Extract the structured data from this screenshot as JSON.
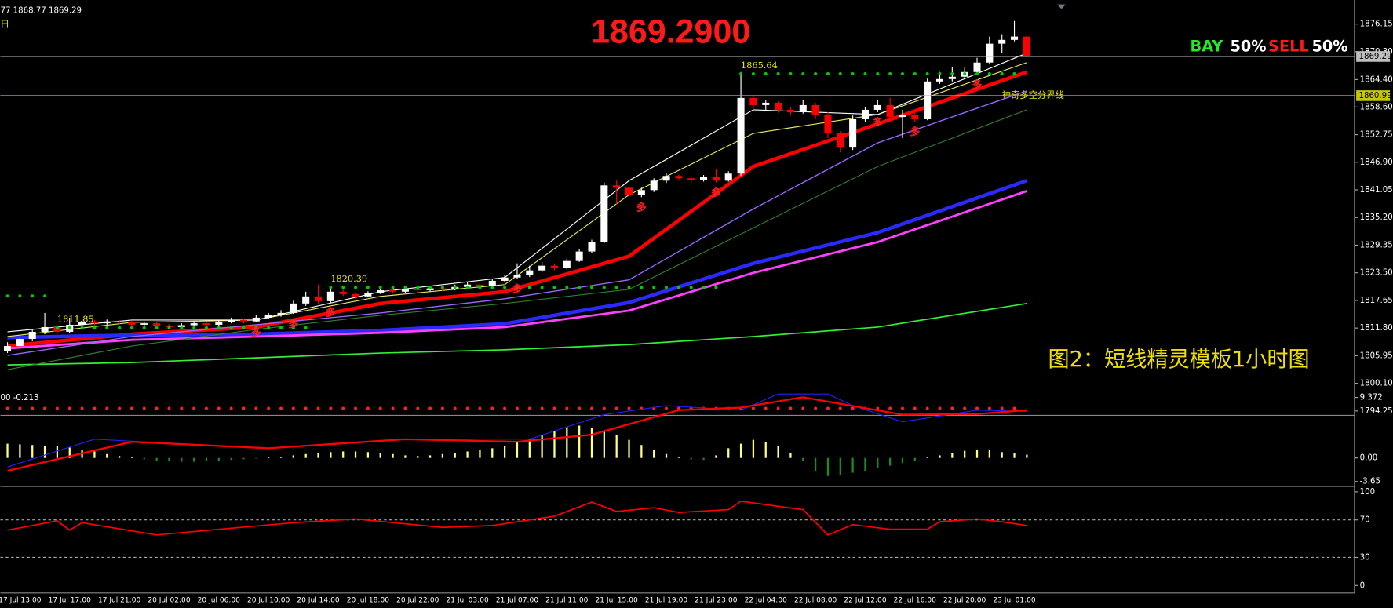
{
  "chart_data": [
    {
      "type": "candlestick",
      "title": "1869.2900",
      "header": "77 1868.77 1869.29",
      "period": "日",
      "ratio": {
        "buy_label": "BAY",
        "buy": "50%",
        "sell_label": "SELL",
        "sell": "50%"
      },
      "annotation": "神奇多空分界线",
      "caption": "图2：短线精灵模板1小时图",
      "up_color": "#ffffff",
      "down_color": "#ff0000",
      "ylim": [
        1793.5,
        1880.3
      ],
      "yticks": [
        1876.15,
        {
          "value": 1870.3,
          "label": "1870.30"
        },
        {
          "value": 1864.4,
          "label": "1864.40"
        },
        {
          "value": 1858.6,
          "label": "1858.60"
        },
        1852.75,
        {
          "value": 1846.9,
          "label": "1846.90"
        },
        1841.05,
        {
          "value": 1835.2,
          "label": "1835.20"
        },
        1829.35,
        {
          "value": 1823.5,
          "label": "1823.50"
        },
        1817.65,
        {
          "value": 1811.8,
          "label": "1811.80"
        },
        1805.95,
        {
          "value": 1800.1,
          "label": "1800.10"
        },
        1794.25
      ],
      "categories": [
        null,
        "17 Jul 13:00",
        null,
        null,
        null,
        "17 Jul 17:00",
        null,
        null,
        null,
        "17 Jul 21:00",
        null,
        null,
        null,
        "20 Jul 02:00",
        null,
        null,
        null,
        "20 Jul 06:00",
        null,
        null,
        null,
        "20 Jul 10:00",
        null,
        null,
        null,
        "20 Jul 14:00",
        null,
        null,
        null,
        "20 Jul 18:00",
        null,
        null,
        null,
        "20 Jul 22:00",
        null,
        null,
        null,
        "21 Jul 03:00",
        null,
        null,
        null,
        "21 Jul 07:00",
        null,
        null,
        null,
        "21 Jul 11:00",
        null,
        null,
        null,
        "21 Jul 15:00",
        null,
        null,
        null,
        "21 Jul 19:00",
        null,
        null,
        null,
        "21 Jul 23:00",
        null,
        null,
        null,
        "22 Jul 04:00",
        null,
        null,
        null,
        "22 Jul 08:00",
        null,
        null,
        null,
        "22 Jul 12:00",
        null,
        null,
        null,
        "22 Jul 16:00",
        null,
        null,
        null,
        "22 Jul 20:00",
        null,
        null,
        null,
        "23 Jul 01:00",
        null
      ],
      "ohlc": [
        [
          1807,
          1808.8,
          1806.5,
          1808
        ],
        [
          1808,
          1810,
          1807.5,
          1809.5
        ],
        [
          1809.5,
          1811.5,
          1809,
          1811
        ],
        [
          1811,
          1815,
          1810.5,
          1812
        ],
        [
          1812,
          1812.5,
          1810.5,
          1811
        ],
        [
          1811,
          1814,
          1810.8,
          1812.5
        ],
        [
          1812.5,
          1813.8,
          1812,
          1813
        ],
        [
          1813,
          1813.5,
          1812.3,
          1812.8
        ],
        [
          1812.8,
          1813.6,
          1812.5,
          1813.2
        ],
        [
          1813.2,
          1813.5,
          1812.6,
          1813
        ],
        [
          1813,
          1813.3,
          1812.2,
          1812.5
        ],
        [
          1812.5,
          1813.2,
          1812.2,
          1812.8
        ],
        [
          1812.8,
          1813,
          1812,
          1812.3
        ],
        [
          1812.3,
          1812.6,
          1811.6,
          1812
        ],
        [
          1812,
          1812.8,
          1811.8,
          1812.4
        ],
        [
          1812.4,
          1813.2,
          1812.1,
          1812.8
        ],
        [
          1812.8,
          1813,
          1812.1,
          1812.5
        ],
        [
          1812.5,
          1813.4,
          1812.3,
          1813
        ],
        [
          1813,
          1814,
          1812.8,
          1813.5
        ],
        [
          1813.5,
          1813.8,
          1812.8,
          1813.2
        ],
        [
          1813.2,
          1814.5,
          1813,
          1814
        ],
        [
          1814,
          1815,
          1813.7,
          1814.5
        ],
        [
          1814.5,
          1815.6,
          1814.2,
          1815
        ],
        [
          1815,
          1817.6,
          1814.8,
          1817
        ],
        [
          1817,
          1819.5,
          1816.5,
          1818.5
        ],
        [
          1818.5,
          1821,
          1817,
          1817.5
        ],
        [
          1817.5,
          1820.5,
          1817.2,
          1819.5
        ],
        [
          1819.5,
          1820,
          1818.6,
          1819
        ],
        [
          1819,
          1819.4,
          1818,
          1818.5
        ],
        [
          1818.5,
          1819.6,
          1818.3,
          1819.2
        ],
        [
          1819.2,
          1820.2,
          1819,
          1819.8
        ],
        [
          1819.8,
          1820.1,
          1819.1,
          1819.5
        ],
        [
          1819.5,
          1820.5,
          1819.3,
          1820
        ],
        [
          1820,
          1820.4,
          1819.4,
          1819.8
        ],
        [
          1819.8,
          1820.6,
          1819.5,
          1820.2
        ],
        [
          1820.2,
          1820.5,
          1819.6,
          1820
        ],
        [
          1820,
          1821,
          1819.8,
          1820.5
        ],
        [
          1820.5,
          1821.6,
          1820.2,
          1821
        ],
        [
          1821,
          1821.3,
          1820.2,
          1820.7
        ],
        [
          1820.7,
          1822.2,
          1820.5,
          1821.8
        ],
        [
          1821.8,
          1823,
          1821.5,
          1822.5
        ],
        [
          1822.5,
          1825.5,
          1822.2,
          1823
        ],
        [
          1823,
          1825,
          1822.6,
          1824
        ],
        [
          1824,
          1825.8,
          1823.6,
          1825
        ],
        [
          1825,
          1825.5,
          1824,
          1824.6
        ],
        [
          1824.6,
          1826.5,
          1824.2,
          1826
        ],
        [
          1826,
          1828.5,
          1825.8,
          1828
        ],
        [
          1828,
          1830.5,
          1827.6,
          1830
        ],
        [
          1830,
          1842.6,
          1829.8,
          1842
        ],
        [
          1842,
          1843,
          1838,
          1841.5
        ],
        [
          1841.5,
          1842,
          1839.5,
          1840
        ],
        [
          1840,
          1841.5,
          1839.5,
          1841
        ],
        [
          1841,
          1843.5,
          1840.6,
          1843
        ],
        [
          1843,
          1844.5,
          1842.5,
          1844
        ],
        [
          1844,
          1844.3,
          1843,
          1843.5
        ],
        [
          1843.5,
          1844,
          1842.5,
          1843.2
        ],
        [
          1843.2,
          1844.2,
          1842.8,
          1843.8
        ],
        [
          1843.8,
          1845.5,
          1842.6,
          1843
        ],
        [
          1843,
          1845,
          1842.8,
          1844.5
        ],
        [
          1844.5,
          1866,
          1844,
          1860.5
        ],
        [
          1860.5,
          1861,
          1858,
          1859
        ],
        [
          1859,
          1860,
          1857.8,
          1859.5
        ],
        [
          1859.5,
          1859.8,
          1857.4,
          1858
        ],
        [
          1858,
          1858.5,
          1856.8,
          1857.5
        ],
        [
          1857.5,
          1860,
          1857.2,
          1859
        ],
        [
          1859,
          1859.5,
          1856,
          1857
        ],
        [
          1857,
          1857.5,
          1852,
          1853
        ],
        [
          1853,
          1853.5,
          1849,
          1850
        ],
        [
          1850,
          1856.8,
          1849.5,
          1856
        ],
        [
          1856,
          1858.5,
          1855.5,
          1858
        ],
        [
          1858,
          1860,
          1857.5,
          1859
        ],
        [
          1859,
          1860.5,
          1856,
          1856.5
        ],
        [
          1856.5,
          1858,
          1852,
          1857
        ],
        [
          1857,
          1857.5,
          1855.5,
          1856
        ],
        [
          1856,
          1864.6,
          1855.8,
          1864
        ],
        [
          1864,
          1866,
          1863.5,
          1864.5
        ],
        [
          1864.5,
          1867,
          1864,
          1865
        ],
        [
          1865,
          1867,
          1864.6,
          1866
        ],
        [
          1866,
          1869,
          1865.5,
          1868
        ],
        [
          1868,
          1873.5,
          1867.6,
          1872
        ],
        [
          1872,
          1874,
          1870,
          1872.8
        ],
        [
          1872.8,
          1876.8,
          1872.5,
          1873.5
        ],
        [
          1873.5,
          1874,
          1869,
          1869.29
        ]
      ],
      "lines": [
        {
          "color": "#ff0000",
          "width": 4,
          "x": [
            0,
            10,
            20,
            30,
            40,
            50,
            60,
            70,
            82
          ],
          "values": [
            1808,
            1810.5,
            1812,
            1817,
            1819.5,
            1827,
            1846,
            1855,
            1866
          ]
        },
        {
          "color": "#2a2aff",
          "width": 4,
          "x": [
            0,
            10,
            20,
            30,
            40,
            50,
            60,
            70,
            82
          ],
          "values": [
            1809.8,
            1810.3,
            1810.5,
            1811.3,
            1812.7,
            1817.2,
            1825.5,
            1832,
            1843
          ]
        },
        {
          "color": "#ff40ff",
          "width": 2.5,
          "x": [
            0,
            10,
            20,
            30,
            40,
            50,
            60,
            70,
            82
          ],
          "values": [
            1807.5,
            1809.3,
            1810,
            1810.8,
            1812,
            1815.5,
            1823.5,
            1830,
            1840.8
          ]
        },
        {
          "color": "#33ee33",
          "width": 1.5,
          "x": [
            0,
            10,
            20,
            30,
            40,
            50,
            60,
            70,
            82
          ],
          "values": [
            1804,
            1804.5,
            1805.5,
            1806.5,
            1807.2,
            1808.3,
            1810,
            1812,
            1817
          ]
        },
        {
          "color": "#9966ff",
          "width": 1.2,
          "x": [
            0,
            10,
            20,
            30,
            40,
            50,
            60,
            70,
            82
          ],
          "values": [
            1806,
            1810,
            1812.5,
            1815,
            1818,
            1822,
            1837,
            1851,
            1862
          ]
        },
        {
          "color": "#2f7f2f",
          "width": 1,
          "x": [
            0,
            10,
            20,
            30,
            40,
            50,
            60,
            70,
            82
          ],
          "values": [
            1803,
            1808,
            1811.5,
            1814.5,
            1817,
            1820,
            1833,
            1846,
            1858
          ]
        },
        {
          "color": "#e8e860",
          "width": 1,
          "x": [
            0,
            10,
            20,
            30,
            40,
            50,
            60,
            70,
            82
          ],
          "values": [
            1810,
            1813,
            1813.5,
            1818.5,
            1821,
            1840,
            1853,
            1857,
            1868
          ]
        },
        {
          "color": "#ffffff",
          "width": 1,
          "x": [
            0,
            10,
            20,
            30,
            40,
            50,
            60,
            70,
            82
          ],
          "values": [
            1811,
            1813.5,
            1813.5,
            1819.5,
            1822.5,
            1843,
            1858,
            1857,
            1870
          ]
        }
      ],
      "labeled_levels": [
        {
          "value": 1811.85,
          "from": 4,
          "to": 25
        },
        {
          "value": 1820.39,
          "from": 26,
          "to": 58
        },
        {
          "value": 1865.64,
          "from": 59,
          "to": 82
        }
      ],
      "unlabeled_levels": [
        {
          "value": 1818.6,
          "from": 0,
          "to": 4,
          "color": "#00cc00"
        },
        {
          "value": 1794.8,
          "from": 0,
          "to": 82,
          "color": "#ff2020"
        }
      ],
      "level_color": "#00cc00",
      "price_lines": [
        {
          "value": 1869.29,
          "color": "#c0c0c0"
        },
        {
          "value": 1860.99,
          "color": "#c8c800"
        }
      ],
      "signals": {
        "text": "多",
        "at": [
          20,
          23,
          26,
          41,
          51,
          57,
          70,
          73,
          78
        ]
      }
    },
    {
      "type": "macd",
      "header": "00 -0.213",
      "ylim": [
        -4,
        10.3
      ],
      "yticks": [
        9.372,
        {
          "value": 0,
          "label": "0.00"
        },
        -3.65
      ],
      "pos_color": "#ffff80",
      "neg_color": "#1f8a1f",
      "values": [
        2.2,
        2.1,
        2.0,
        1.9,
        1.8,
        1.6,
        1.3,
        1.0,
        0.6,
        0.3,
        0.1,
        -0.2,
        -0.4,
        -0.5,
        -0.6,
        -0.6,
        -0.5,
        -0.4,
        -0.3,
        -0.2,
        -0.1,
        0.1,
        0.2,
        0.4,
        0.6,
        0.8,
        0.9,
        1.0,
        1.0,
        0.9,
        0.8,
        0.6,
        0.4,
        0.3,
        0.4,
        0.6,
        0.8,
        1.0,
        1.2,
        1.5,
        1.9,
        2.4,
        3.0,
        3.6,
        4.2,
        4.8,
        5.0,
        4.7,
        4.2,
        3.6,
        2.8,
        2.0,
        1.2,
        0.6,
        0.2,
        -0.2,
        -0.3,
        0.4,
        1.5,
        2.2,
        2.8,
        2.5,
        1.8,
        0.8,
        -0.5,
        -2.0,
        -2.8,
        -2.6,
        -2.3,
        -2.0,
        -1.6,
        -1.2,
        -0.8,
        -0.4,
        0.1,
        0.4,
        0.8,
        1.1,
        1.3,
        1.2,
        0.9,
        0.7,
        0.5
      ],
      "lines": [
        {
          "color": "#2020ff",
          "width": 1,
          "x": [
            0,
            7,
            21,
            32,
            42,
            48,
            53,
            59,
            62,
            66,
            68,
            72,
            78,
            82
          ],
          "values": [
            -1.4,
            2.9,
            1.5,
            2.9,
            2.9,
            6.7,
            8.1,
            7.4,
            9.9,
            9.9,
            8.1,
            5.6,
            7.4,
            7.2
          ]
        },
        {
          "color": "#ff0000",
          "width": 2,
          "x": [
            0,
            10,
            21,
            32,
            41,
            47,
            54,
            59,
            64,
            72,
            78,
            82
          ],
          "values": [
            -2,
            2.5,
            1.5,
            2.9,
            2.5,
            3.6,
            7.4,
            7.8,
            9.4,
            6.7,
            6.8,
            7.4
          ]
        }
      ]
    },
    {
      "type": "line",
      "ylim": [
        -7,
        102
      ],
      "yticks": [
        100,
        70,
        30,
        0
      ],
      "dashed_levels": [
        70,
        30
      ],
      "lines": [
        {
          "color": "#ff0000",
          "width": 1.5,
          "x": [
            0,
            4,
            5,
            6,
            12,
            17,
            23,
            28,
            35,
            39,
            44,
            47,
            49,
            52,
            54,
            58,
            59,
            64,
            66,
            68,
            71,
            74,
            75,
            78,
            80,
            82
          ],
          "values": [
            59,
            69,
            59,
            67,
            54,
            60,
            67,
            71,
            62,
            64,
            74,
            89,
            79,
            83,
            78,
            81,
            90,
            81,
            54,
            65,
            60,
            60,
            68,
            71,
            68,
            64
          ]
        }
      ]
    }
  ]
}
